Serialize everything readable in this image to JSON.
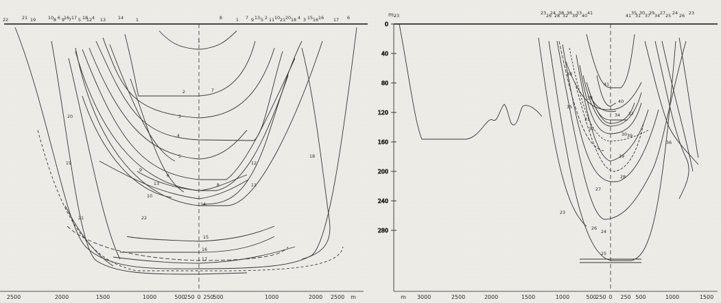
{
  "left_panel": {
    "top_labels": [
      "22",
      "21",
      "19",
      "10",
      "8",
      "6",
      "9",
      "16",
      "7",
      "17",
      "5",
      "18",
      "12",
      "4",
      "13",
      "14",
      "1",
      "8",
      "1",
      "7",
      "9",
      "13",
      "5",
      "2",
      "11",
      "10",
      "21",
      "20",
      "18",
      "4",
      "3",
      "15",
      "16",
      "16",
      "17",
      "6"
    ],
    "x_ticks": [
      "2500",
      "2000",
      "1500",
      "1000",
      "500",
      "250",
      "0",
      "250",
      "500",
      "1000",
      "2000",
      "2500",
      "m"
    ],
    "profile_numbers": [
      "1",
      "2",
      "3",
      "4",
      "5",
      "6",
      "7",
      "8",
      "9",
      "10",
      "11",
      "12",
      "13",
      "14",
      "15",
      "16",
      "17",
      "18",
      "19",
      "20",
      "21",
      "22"
    ]
  },
  "depth_axis": {
    "unit": "m.",
    "ticks": [
      "0",
      "40",
      "80",
      "120",
      "160",
      "200",
      "240",
      "280"
    ]
  },
  "right_panel": {
    "top_labels": [
      "23",
      "23",
      "26",
      "24",
      "28",
      "38",
      "32",
      "36",
      "39",
      "33",
      "40",
      "41",
      "41",
      "35",
      "31",
      "30",
      "37",
      "29",
      "34",
      "27",
      "25",
      "24",
      "26",
      "23"
    ],
    "x_ticks": [
      "m",
      "3000",
      "2500",
      "2000",
      "1500",
      "1000",
      "500",
      "250",
      "0",
      "250",
      "500",
      "1000",
      "1500"
    ],
    "profile_numbers": [
      "23",
      "24",
      "25",
      "26",
      "27",
      "28",
      "29",
      "30",
      "31",
      "32",
      "33",
      "34",
      "35",
      "36",
      "37",
      "38",
      "39",
      "40",
      "41"
    ]
  }
}
